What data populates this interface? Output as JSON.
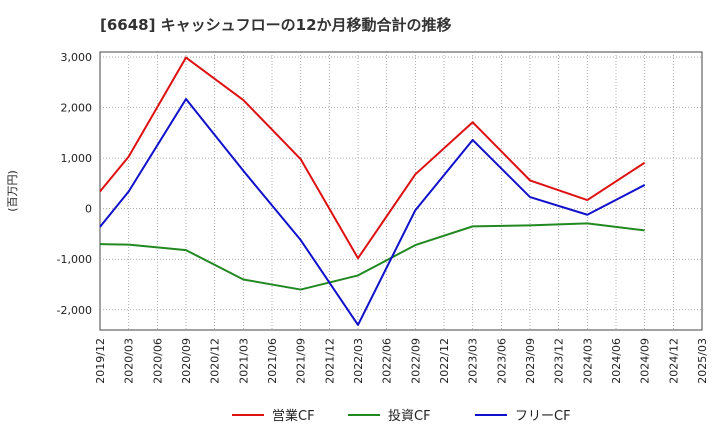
{
  "chart_data": {
    "type": "line",
    "title": "[6648]  キャッシュフローの12か月移動合計の推移",
    "ylabel": "(百万円)",
    "xlabel": "",
    "ylim": [
      -2400,
      3100
    ],
    "yticks": [
      3000,
      2000,
      1000,
      0,
      -1000,
      -2000
    ],
    "ytick_labels": [
      "3,000",
      "2,000",
      "1,000",
      "0",
      "-1,000",
      "-2,000"
    ],
    "categories": [
      "2019/12",
      "2020/03",
      "2020/06",
      "2020/09",
      "2020/12",
      "2021/03",
      "2021/06",
      "2021/09",
      "2021/12",
      "2022/03",
      "2022/06",
      "2022/09",
      "2022/12",
      "2023/03",
      "2023/06",
      "2023/09",
      "2023/12",
      "2024/03",
      "2024/06",
      "2024/09",
      "2024/12",
      "2025/03"
    ],
    "grid": true,
    "legend_position": "bottom",
    "series": [
      {
        "name": "営業CF",
        "color": "#dd1111",
        "values": [
          340,
          1030,
          null,
          2990,
          null,
          2150,
          null,
          980,
          null,
          -980,
          null,
          680,
          null,
          1710,
          null,
          560,
          null,
          170,
          null,
          910,
          null,
          null
        ]
      },
      {
        "name": "投資CF",
        "color": "#228822",
        "values": [
          -700,
          -710,
          null,
          -820,
          null,
          -1400,
          null,
          -1600,
          null,
          -1320,
          null,
          -720,
          null,
          -350,
          null,
          -330,
          null,
          -290,
          null,
          -430,
          null,
          null
        ]
      },
      {
        "name": "フリーCF",
        "color": "#1111cc",
        "values": [
          -360,
          340,
          null,
          2170,
          null,
          750,
          null,
          -620,
          null,
          -2300,
          null,
          -30,
          null,
          1360,
          null,
          230,
          null,
          -120,
          null,
          470,
          null,
          null
        ]
      }
    ]
  }
}
